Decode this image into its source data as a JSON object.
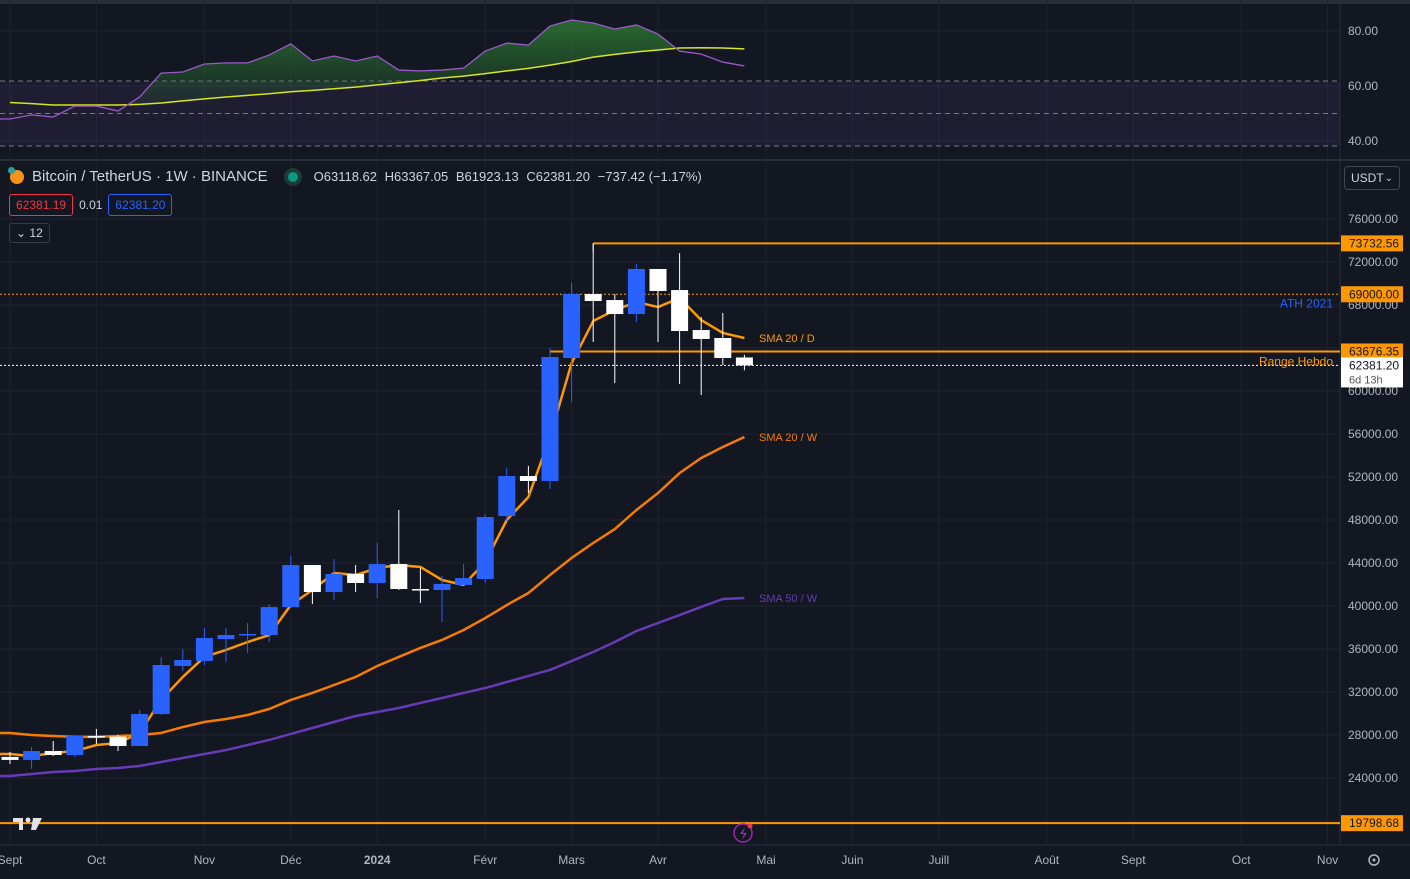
{
  "header": {
    "symbol": "Bitcoin / TetherUS · 1W · BINANCE",
    "open": "O63118.62",
    "high": "H63367.05",
    "low": "B61923.13",
    "close": "C62381.20",
    "change": "−737.42 (−1.17%)",
    "bid": "62381.19",
    "spread": "0.01",
    "ask": "62381.20",
    "collapse_count": "12",
    "currency": "USDT"
  },
  "colors": {
    "background": "#131722",
    "grid": "#1f2330",
    "up_candle": "#2962ff",
    "down_candle": "#ffffff",
    "level": "#ff9800",
    "sma20w": "#f57c00",
    "sma50w": "#673ab7",
    "rsi": "#9b59c9",
    "rsi_ma": "#d8e61c",
    "ath_text": "#2962ff"
  },
  "chart_data": [
    {
      "type": "candlestick",
      "interval": "1W",
      "dates": [
        "2023-09-04",
        "2023-09-11",
        "2023-09-18",
        "2023-09-25",
        "2023-10-02",
        "2023-10-09",
        "2023-10-16",
        "2023-10-23",
        "2023-10-30",
        "2023-11-06",
        "2023-11-13",
        "2023-11-20",
        "2023-11-27",
        "2023-12-04",
        "2023-12-11",
        "2023-12-18",
        "2023-12-25",
        "2024-01-01",
        "2024-01-08",
        "2024-01-15",
        "2024-01-22",
        "2024-01-29",
        "2024-02-05",
        "2024-02-12",
        "2024-02-19",
        "2024-02-26",
        "2024-03-04",
        "2024-03-11",
        "2024-03-18",
        "2024-03-25",
        "2024-04-01",
        "2024-04-08",
        "2024-04-15",
        "2024-04-22",
        "2024-04-29"
      ],
      "ohlc": [
        [
          25960,
          26420,
          25300,
          25680
        ],
        [
          25680,
          26880,
          24840,
          26510
        ],
        [
          26510,
          27440,
          26050,
          26140
        ],
        [
          26140,
          28000,
          25950,
          27910
        ],
        [
          27910,
          28560,
          27160,
          27850
        ],
        [
          27850,
          28000,
          26510,
          26980
        ],
        [
          26980,
          30330,
          26980,
          29950
        ],
        [
          29950,
          35250,
          29860,
          34510
        ],
        [
          34420,
          36000,
          33950,
          34980
        ],
        [
          34890,
          37950,
          34510,
          37020
        ],
        [
          36930,
          37950,
          34800,
          37300
        ],
        [
          37300,
          38420,
          35630,
          37400
        ],
        [
          37300,
          40180,
          36650,
          39900
        ],
        [
          39900,
          44650,
          39810,
          43810
        ],
        [
          43810,
          43810,
          40180,
          41300
        ],
        [
          41300,
          44370,
          40560,
          42980
        ],
        [
          42980,
          43810,
          41300,
          42140
        ],
        [
          42140,
          45860,
          40740,
          43900
        ],
        [
          43900,
          48930,
          41490,
          41580
        ],
        [
          41580,
          43530,
          40280,
          41500
        ],
        [
          41490,
          42790,
          38510,
          42050
        ],
        [
          41960,
          43900,
          41960,
          42600
        ],
        [
          42510,
          48560,
          42140,
          48280
        ],
        [
          48370,
          52840,
          47900,
          52090
        ],
        [
          52090,
          53030,
          50510,
          51630
        ],
        [
          51630,
          64000,
          50880,
          63160
        ],
        [
          63070,
          70050,
          58980,
          69020
        ],
        [
          69020,
          73740,
          64560,
          68370
        ],
        [
          68460,
          69020,
          60740,
          67160
        ],
        [
          67160,
          71810,
          66420,
          71350
        ],
        [
          71350,
          71350,
          64560,
          69300
        ],
        [
          69390,
          72830,
          60650,
          65580
        ],
        [
          65670,
          66880,
          59630,
          64840
        ],
        [
          64930,
          67250,
          62420,
          63070
        ],
        [
          63118.62,
          63367.05,
          61923.13,
          62381.2
        ]
      ],
      "indicators": [
        {
          "name": "SMA 20 / D",
          "values": [
            26230,
            26040,
            26330,
            26510,
            27070,
            27250,
            28190,
            31260,
            33400,
            35260,
            35910,
            36650,
            37300,
            40090,
            41490,
            43070,
            42880,
            43530,
            43810,
            43630,
            42420,
            41960,
            44090,
            48000,
            50140,
            55720,
            62600,
            66510,
            67530,
            68280,
            67810,
            68650,
            66600,
            65400,
            64930
          ]
        },
        {
          "name": "SMA 20 / W",
          "values": [
            28190,
            28000,
            27910,
            27820,
            27820,
            27910,
            28000,
            28190,
            28740,
            29210,
            29490,
            29860,
            30420,
            31260,
            31910,
            32650,
            33400,
            34420,
            35260,
            36100,
            36840,
            37770,
            38880,
            40090,
            41210,
            42880,
            44470,
            45860,
            47160,
            48930,
            50510,
            52370,
            53770,
            54790,
            55720
          ]
        },
        {
          "name": "SMA 50 / W",
          "values": [
            24190,
            24370,
            24560,
            24650,
            24840,
            24930,
            25120,
            25490,
            25860,
            26230,
            26600,
            27070,
            27540,
            28100,
            28650,
            29210,
            29770,
            30140,
            30510,
            30980,
            31440,
            31910,
            32370,
            32930,
            33490,
            34050,
            34880,
            35720,
            36650,
            37670,
            38420,
            39160,
            39910,
            40650,
            40740
          ]
        }
      ],
      "levels": [
        {
          "price": 73732.56,
          "label": "73732.56",
          "style": "solid",
          "from": "2024-03-11"
        },
        {
          "price": 69000.0,
          "label": "69000.00",
          "style": "dotted",
          "text": "ATH 2021"
        },
        {
          "price": 63676.35,
          "label": "63676.35",
          "style": "solid",
          "from": "2024-02-26",
          "text": "Range Hebdo"
        },
        {
          "price": 19798.68,
          "label": "19798.68",
          "style": "solid"
        }
      ],
      "last_price": {
        "value": "62381.20",
        "countdown": "6d 13h"
      },
      "yaxis_ticks": [
        "76000.00",
        "72000.00",
        "68000.00",
        "60000.00",
        "56000.00",
        "52000.00",
        "48000.00",
        "44000.00",
        "40000.00",
        "36000.00",
        "32000.00",
        "28000.00",
        "24000.00"
      ],
      "ylim": [
        19000,
        78000
      ],
      "xaxis_ticks": [
        {
          "label": "Sept",
          "date": "2023-09-04"
        },
        {
          "label": "Oct",
          "date": "2023-10-02"
        },
        {
          "label": "Nov",
          "date": "2023-11-06"
        },
        {
          "label": "Déc",
          "date": "2023-12-04"
        },
        {
          "label": "2024",
          "date": "2024-01-01",
          "bold": true
        },
        {
          "label": "Févr",
          "date": "2024-02-05"
        },
        {
          "label": "Mars",
          "date": "2024-03-04"
        },
        {
          "label": "Avr",
          "date": "2024-04-01"
        },
        {
          "label": "Mai",
          "date": "2024-05-06"
        },
        {
          "label": "Juin",
          "date": "2024-06-03"
        },
        {
          "label": "Juill",
          "date": "2024-07-01"
        },
        {
          "label": "Août",
          "date": "2024-08-05"
        },
        {
          "label": "Sept",
          "date": "2024-09-02"
        },
        {
          "label": "Oct",
          "date": "2024-10-07"
        },
        {
          "label": "Nov",
          "date": "2024-11-04"
        }
      ],
      "grid": true
    },
    {
      "type": "line",
      "panel": "RSI",
      "rsi": [
        48.0,
        49.5,
        48.7,
        52.7,
        52.7,
        50.9,
        56.0,
        64.7,
        65.1,
        68.0,
        68.4,
        68.4,
        71.3,
        75.3,
        69.1,
        70.9,
        69.1,
        70.9,
        65.8,
        65.5,
        65.8,
        66.5,
        72.7,
        75.6,
        74.9,
        81.8,
        84.0,
        82.9,
        80.7,
        82.2,
        78.9,
        72.7,
        71.6,
        68.7,
        67.3
      ],
      "rsi_ma": [
        54.0,
        53.6,
        53.1,
        53.1,
        53.1,
        53.1,
        53.3,
        53.8,
        54.6,
        55.3,
        56.0,
        56.6,
        57.2,
        57.9,
        58.4,
        59.0,
        59.6,
        60.4,
        61.2,
        62.0,
        62.9,
        63.6,
        64.5,
        65.5,
        66.4,
        67.6,
        68.9,
        70.5,
        71.5,
        72.4,
        73.1,
        73.8,
        73.9,
        73.8,
        73.5
      ],
      "levels": [
        61.8,
        50,
        38.2
      ],
      "yaxis_ticks": [
        "80.00",
        "60.00",
        "40.00"
      ],
      "ylim": [
        35,
        90
      ]
    }
  ]
}
